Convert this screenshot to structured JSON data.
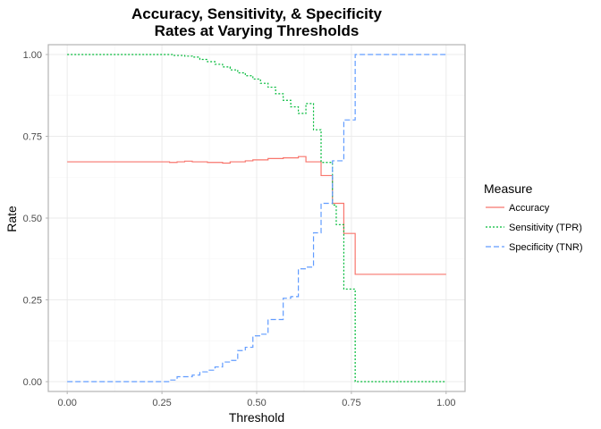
{
  "chart_data": {
    "type": "line",
    "title_line1": "Accuracy, Sensitivity, & Specificity",
    "title_line2": "Rates at Varying Thresholds",
    "xlabel": "Threshold",
    "ylabel": "Rate",
    "xlim": [
      -0.05,
      1.05
    ],
    "ylim": [
      -0.03,
      1.03
    ],
    "x_ticks": [
      0,
      0.25,
      0.5,
      0.75,
      1
    ],
    "x_tick_labels": [
      "0.00",
      "0.25",
      "0.50",
      "0.75",
      "1.00"
    ],
    "y_ticks": [
      0,
      0.25,
      0.5,
      0.75,
      1
    ],
    "y_tick_labels": [
      "0.00",
      "0.25",
      "0.50",
      "0.75",
      "1.00"
    ],
    "grid": true,
    "legend": {
      "title": "Measure",
      "position": "right",
      "entries": [
        "Accuracy",
        "Sensitivity (TPR)",
        "Specificity (TNR)"
      ]
    },
    "series": [
      {
        "name": "Accuracy",
        "color": "#F8766D",
        "dash": "solid",
        "step": true,
        "x": [
          0,
          0.25,
          0.27,
          0.29,
          0.31,
          0.33,
          0.35,
          0.37,
          0.39,
          0.41,
          0.43,
          0.45,
          0.47,
          0.49,
          0.51,
          0.53,
          0.55,
          0.57,
          0.59,
          0.61,
          0.63,
          0.65,
          0.67,
          0.69,
          0.7,
          0.71,
          0.73,
          0.76,
          1
        ],
        "y": [
          0.672,
          0.672,
          0.67,
          0.672,
          0.674,
          0.672,
          0.672,
          0.67,
          0.67,
          0.668,
          0.672,
          0.672,
          0.675,
          0.678,
          0.678,
          0.682,
          0.682,
          0.684,
          0.684,
          0.688,
          0.672,
          0.672,
          0.63,
          0.63,
          0.545,
          0.545,
          0.453,
          0.328,
          0.328
        ]
      },
      {
        "name": "Sensitivity (TPR)",
        "color": "#00BA38",
        "dash": "dotted",
        "step": true,
        "x": [
          0,
          0.25,
          0.28,
          0.31,
          0.33,
          0.35,
          0.37,
          0.39,
          0.41,
          0.43,
          0.45,
          0.47,
          0.49,
          0.51,
          0.53,
          0.55,
          0.57,
          0.59,
          0.61,
          0.63,
          0.65,
          0.67,
          0.69,
          0.7,
          0.71,
          0.73,
          0.76,
          1
        ],
        "y": [
          1.0,
          1.0,
          0.997,
          0.995,
          0.992,
          0.985,
          0.978,
          0.97,
          0.962,
          0.953,
          0.944,
          0.935,
          0.925,
          0.912,
          0.9,
          0.88,
          0.86,
          0.84,
          0.82,
          0.85,
          0.77,
          0.67,
          0.67,
          0.54,
          0.48,
          0.283,
          0.0,
          0.0
        ]
      },
      {
        "name": "Specificity (TNR)",
        "color": "#619CFF",
        "dash": "dashed",
        "step": true,
        "x": [
          0,
          0.25,
          0.27,
          0.29,
          0.31,
          0.33,
          0.35,
          0.37,
          0.39,
          0.41,
          0.43,
          0.45,
          0.47,
          0.49,
          0.51,
          0.53,
          0.55,
          0.57,
          0.59,
          0.61,
          0.63,
          0.65,
          0.67,
          0.69,
          0.7,
          0.71,
          0.73,
          0.76,
          1
        ],
        "y": [
          0.0,
          0.0,
          0.005,
          0.015,
          0.015,
          0.02,
          0.03,
          0.035,
          0.045,
          0.06,
          0.065,
          0.095,
          0.105,
          0.14,
          0.145,
          0.19,
          0.19,
          0.255,
          0.26,
          0.345,
          0.35,
          0.455,
          0.545,
          0.545,
          0.675,
          0.675,
          0.8,
          1.0,
          1.0
        ]
      }
    ]
  }
}
